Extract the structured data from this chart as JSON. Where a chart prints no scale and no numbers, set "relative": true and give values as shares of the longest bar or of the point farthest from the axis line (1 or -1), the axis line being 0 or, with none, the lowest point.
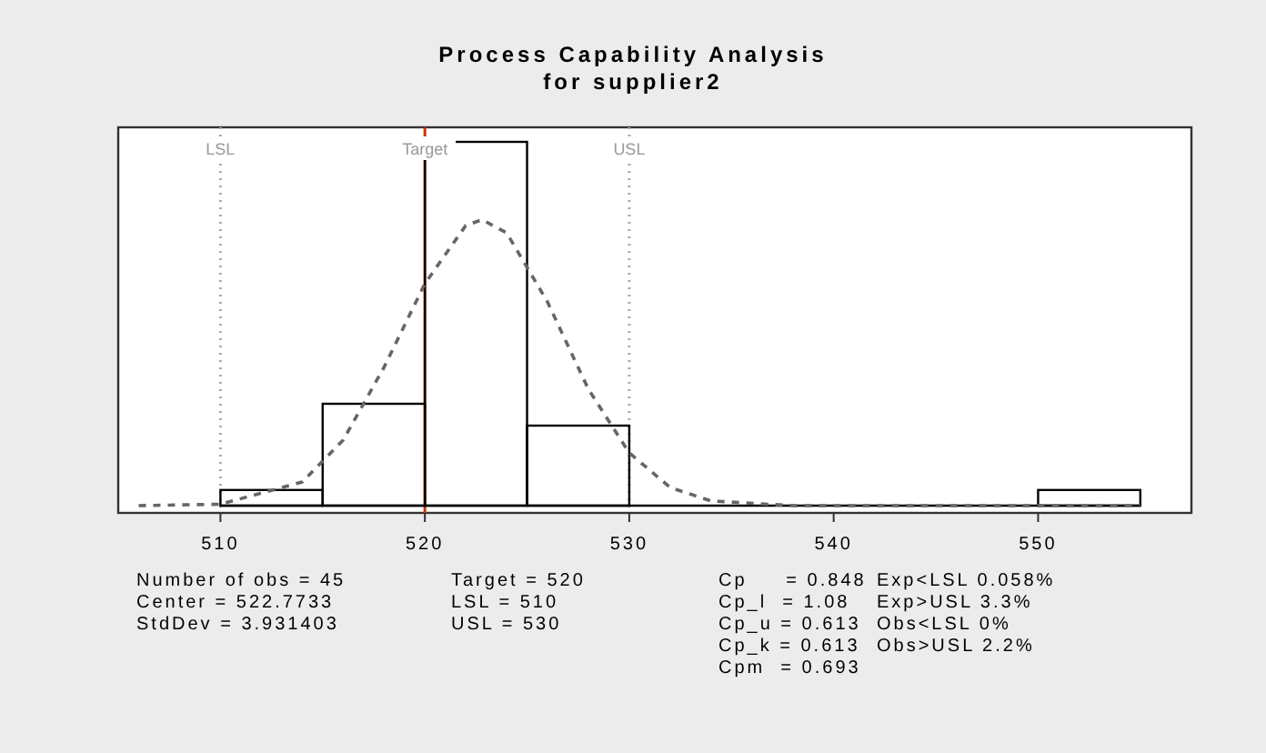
{
  "chart_data": {
    "type": "histogram",
    "title": "Process Capability Analysis\nfor supplier2",
    "relative": true,
    "bins": [
      510,
      515,
      520,
      525,
      530,
      535,
      540,
      545,
      550,
      555
    ],
    "xlim": [
      505,
      557.5
    ],
    "xticks": [
      510,
      520,
      530,
      540,
      550
    ],
    "series": [
      {
        "color": "#000000",
        "values": [
          0.043,
          0.28,
          1,
          0.22,
          0,
          0,
          0,
          0,
          0.043
        ]
      },
      {
        "type": "line",
        "color": "#666666",
        "line_style": "dashed",
        "x": [
          506,
          510,
          514,
          516,
          518,
          520,
          522,
          522.8,
          524,
          526,
          528,
          530,
          532,
          534,
          538,
          545,
          555
        ],
        "values": [
          0,
          0.004,
          0.065,
          0.18,
          0.38,
          0.61,
          0.77,
          0.786,
          0.75,
          0.56,
          0.32,
          0.145,
          0.05,
          0.013,
          0,
          0,
          0
        ]
      }
    ],
    "ref_lines": [
      {
        "axis": "x",
        "value": 510,
        "label": "LSL",
        "color": "#aaaaaa",
        "line_style": "dotted"
      },
      {
        "axis": "x",
        "value": 520,
        "label": "Target",
        "color": "#cc3300",
        "line_style": "solid"
      },
      {
        "axis": "x",
        "value": 530,
        "label": "USL",
        "color": "#aaaaaa",
        "line_style": "dotted"
      }
    ],
    "annotations": [
      "Number of obs = 45\nCenter = 522.7733\nStdDev = 3.931403",
      "Target = 520\nLSL = 510\nUSL = 530",
      "Cp     = 0.848\nCp_l  = 1.08\nCp_u = 0.613\nCp_k = 0.613\nCpm  = 0.693",
      "Exp<LSL 0.058%\nExp>USL 3.3%\nObs<LSL 0%\nObs>USL 2.2%"
    ]
  }
}
